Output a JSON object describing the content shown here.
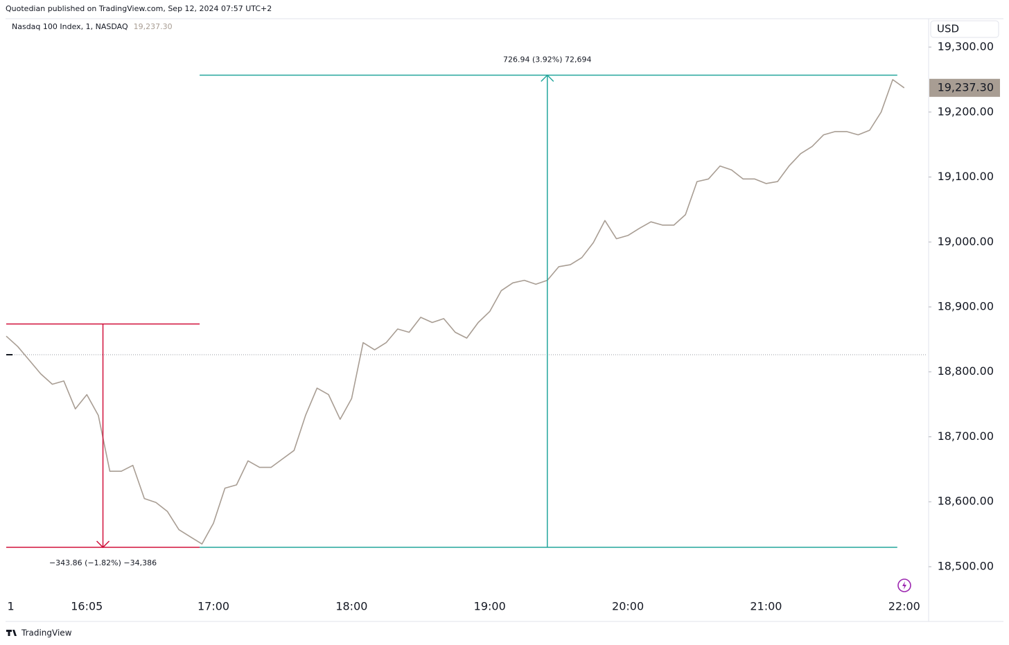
{
  "chart_data": {
    "type": "line",
    "title": "Quotedian published on TradingView.com, Sep 12, 2024 07:57 UTC+2",
    "subtitle": "Nasdaq 100 Index, 1, NASDAQ",
    "currency": "USD",
    "footer": "TradingView",
    "last_price": {
      "value": 19237.3,
      "label": "19,237.30"
    },
    "x": [
      "15:30",
      "15:35",
      "15:40",
      "15:45",
      "15:50",
      "15:55",
      "16:00",
      "16:05",
      "16:10",
      "16:15",
      "16:20",
      "16:25",
      "16:30",
      "16:35",
      "16:40",
      "16:45",
      "16:50",
      "16:55",
      "17:00",
      "17:05",
      "17:10",
      "17:15",
      "17:20",
      "17:25",
      "17:30",
      "17:35",
      "17:40",
      "17:45",
      "17:50",
      "17:55",
      "18:00",
      "18:05",
      "18:10",
      "18:15",
      "18:20",
      "18:25",
      "18:30",
      "18:35",
      "18:40",
      "18:45",
      "18:50",
      "18:55",
      "19:00",
      "19:05",
      "19:10",
      "19:15",
      "19:20",
      "19:25",
      "19:30",
      "19:35",
      "19:40",
      "19:45",
      "19:50",
      "19:55",
      "20:00",
      "20:05",
      "20:10",
      "20:15",
      "20:20",
      "20:25",
      "20:30",
      "20:35",
      "20:40",
      "20:45",
      "20:50",
      "20:55",
      "21:00",
      "21:05",
      "21:10",
      "21:15",
      "21:20",
      "21:25",
      "21:30",
      "21:35",
      "21:40",
      "21:45",
      "21:50",
      "21:55",
      "22:00"
    ],
    "series": [
      {
        "name": "Nasdaq 100 Index",
        "color": "#a89d93",
        "values": [
          18855,
          18839,
          18818,
          18797,
          18781,
          18786,
          18743,
          18765,
          18733,
          18647,
          18647,
          18656,
          18605,
          18599,
          18585,
          18557,
          18546,
          18535,
          18567,
          18621,
          18626,
          18663,
          18653,
          18653,
          18666,
          18679,
          18733,
          18775,
          18765,
          18727,
          18759,
          18845,
          18834,
          18845,
          18866,
          18861,
          18884,
          18876,
          18882,
          18861,
          18852,
          18876,
          18893,
          18925,
          18937,
          18941,
          18935,
          18941,
          18962,
          18965,
          18976,
          18999,
          19033,
          19005,
          19010,
          19021,
          19031,
          19026,
          19026,
          19042,
          19093,
          19097,
          19117,
          19111,
          19097,
          19097,
          19090,
          19093,
          19117,
          19136,
          19147,
          19165,
          19170,
          19170,
          19165,
          19172,
          19200,
          19250,
          19237.3
        ]
      }
    ],
    "xlim": [
      "15:30",
      "22:10"
    ],
    "xticks": [
      {
        "value": "15:32",
        "label": "1"
      },
      "16:05",
      "17:00",
      "18:00",
      "19:00",
      "20:00",
      "21:00",
      "22:00"
    ],
    "ylim": [
      18457.33,
      19342.67
    ],
    "yticks": [
      {
        "value": 18500,
        "label": "18,500.00"
      },
      {
        "value": 18600,
        "label": "18,600.00"
      },
      {
        "value": 18700,
        "label": "18,700.00"
      },
      {
        "value": 18800,
        "label": "18,800.00"
      },
      {
        "value": 18900,
        "label": "18,900.00"
      },
      {
        "value": 19000,
        "label": "19,000.00"
      },
      {
        "value": 19100,
        "label": "19,100.00"
      },
      {
        "value": 19200,
        "label": "19,200.00"
      },
      {
        "value": 19300,
        "label": "19,300.00"
      }
    ],
    "reference_line": 18826.4,
    "measurements": [
      {
        "from": 18873.7,
        "to": 18529.84,
        "x_start": "15:30",
        "x_end": "16:54",
        "x_arrow": "16:12",
        "color": "#d0103a",
        "label": "−343.86 (−1.82%) −34,386"
      },
      {
        "from": 18529.84,
        "to": 19256.78,
        "x_start": "16:54",
        "x_end": "21:57",
        "x_arrow": "19:25",
        "color": "#22a69c",
        "label": "726.94 (3.92%) 72,694"
      }
    ]
  }
}
